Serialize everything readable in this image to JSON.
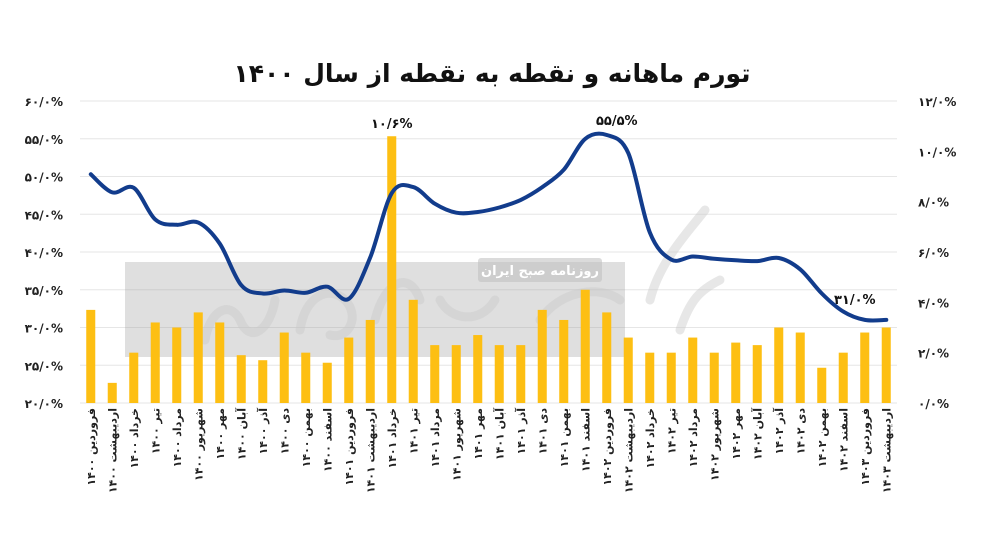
{
  "watermark": {
    "banner_text": "روزنامه صبح ایران",
    "logo_text": "دنیای اقتصاد"
  },
  "chart_data": {
    "type": "bar+line",
    "title": "تورم ماهانه و نقطه به نقطه از سال ۱۴۰۰",
    "categories": [
      "فروردین ۱۴۰۰",
      "اردیبهشت ۱۴۰۰",
      "خرداد ۱۴۰۰",
      "تیر ۱۴۰۰",
      "مرداد ۱۴۰۰",
      "شهریور ۱۴۰۰",
      "مهر ۱۴۰۰",
      "آبان ۱۴۰۰",
      "آذر ۱۴۰۰",
      "دی ۱۴۰۰",
      "بهمن ۱۴۰۰",
      "اسفند ۱۴۰۰",
      "فروردین ۱۴۰۱",
      "اردیبهشت ۱۴۰۱",
      "خرداد ۱۴۰۱",
      "تیر ۱۴۰۱",
      "مرداد ۱۴۰۱",
      "شهریور ۱۴۰۱",
      "مهر ۱۴۰۱",
      "آبان ۱۴۰۱",
      "آذر ۱۴۰۱",
      "دی ۱۴۰۱",
      "بهمن ۱۴۰۱",
      "اسفند ۱۴۰۱",
      "فروردین ۱۴۰۲",
      "اردیبهشت ۱۴۰۲",
      "خرداد ۱۴۰۲",
      "تیر ۱۴۰۲",
      "مرداد ۱۴۰۲",
      "شهریور ۱۴۰۲",
      "مهر ۱۴۰۲",
      "آبان ۱۴۰۲",
      "آذر ۱۴۰۲",
      "دی ۱۴۰۲",
      "بهمن ۱۴۰۲",
      "اسفند ۱۴۰۲",
      "فروردین ۱۴۰۳",
      "اردیبهشت ۱۴۰۳"
    ],
    "series": [
      {
        "kind": "bar",
        "axis": "right",
        "color": "#FDBF13",
        "values": [
          3.7,
          0.8,
          2.0,
          3.2,
          3.0,
          3.6,
          3.2,
          1.9,
          1.7,
          2.8,
          2.0,
          1.6,
          2.6,
          3.3,
          10.6,
          4.1,
          2.3,
          2.3,
          2.7,
          2.3,
          2.3,
          3.7,
          3.3,
          4.5,
          3.6,
          2.6,
          2.0,
          2.0,
          2.6,
          2.0,
          2.4,
          2.3,
          3.0,
          2.8,
          1.4,
          2.0,
          2.8,
          3.0
        ]
      },
      {
        "kind": "line",
        "axis": "left",
        "color": "#123C8C",
        "values": [
          50.3,
          47.9,
          48.5,
          44.3,
          43.6,
          43.9,
          41.1,
          35.6,
          34.5,
          34.9,
          34.6,
          35.4,
          33.8,
          39.3,
          47.8,
          48.6,
          46.4,
          45.2,
          45.3,
          45.9,
          46.9,
          48.6,
          50.9,
          55.0,
          55.5,
          53.1,
          42.6,
          39.0,
          39.4,
          39.1,
          38.9,
          38.8,
          39.2,
          37.7,
          34.5,
          32.1,
          31.0,
          31.0
        ]
      }
    ],
    "y_left": {
      "min": 20,
      "max": 60,
      "step": 5,
      "tick_labels": [
        "۲۰/۰%",
        "۲۵/۰%",
        "۳۰/۰%",
        "۳۵/۰%",
        "۴۰/۰%",
        "۴۵/۰%",
        "۵۰/۰%",
        "۵۵/۰%",
        "۶۰/۰%"
      ]
    },
    "y_right": {
      "min": 0,
      "max": 12,
      "step": 2,
      "tick_labels": [
        "۰/۰%",
        "۲/۰%",
        "۴/۰%",
        "۶/۰%",
        "۸/۰%",
        "۱۰/۰%",
        "۱۲/۰%"
      ]
    },
    "annotations": [
      {
        "text": "۱۰/۶%",
        "index": 14,
        "on": "bar"
      },
      {
        "text": "۵۵/۵%",
        "index": 24,
        "on": "line"
      },
      {
        "text": "۳۱/۰%",
        "index": 36,
        "on": "line"
      }
    ],
    "grid": true,
    "legend": "none"
  }
}
